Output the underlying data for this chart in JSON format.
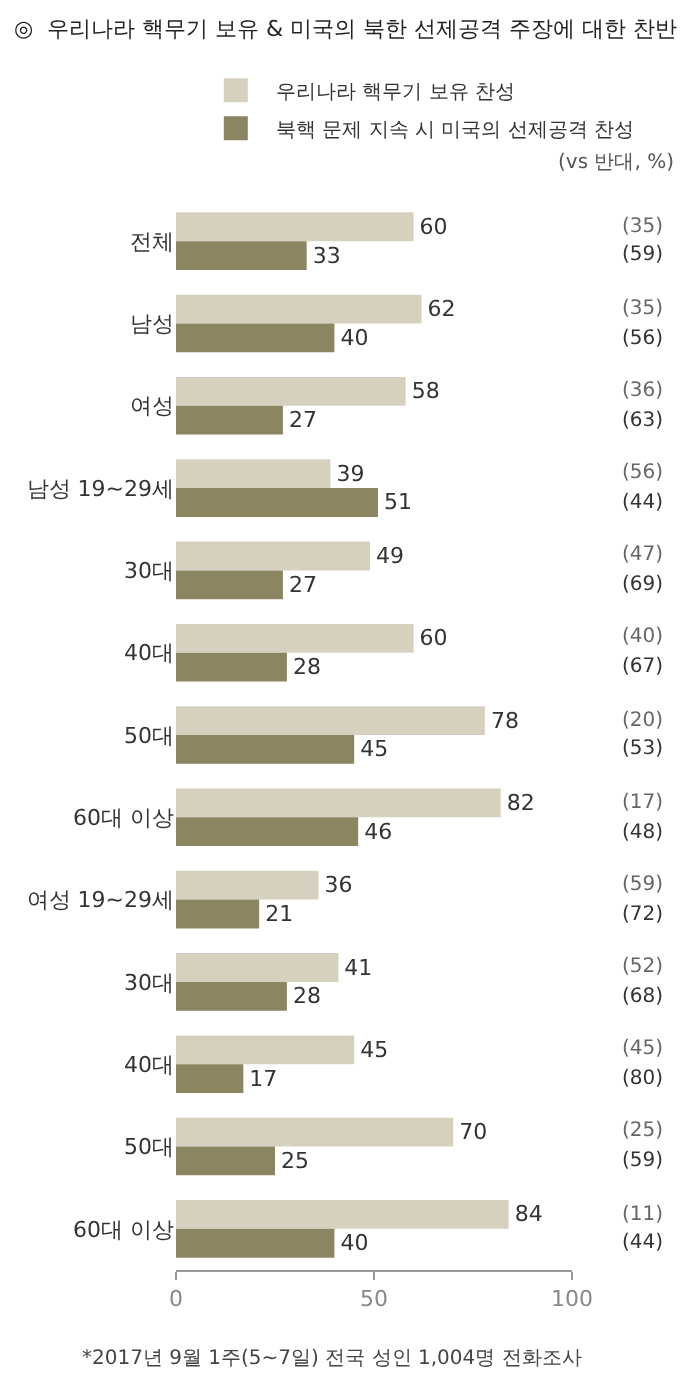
{
  "chart_data": {
    "type": "bar",
    "orientation": "horizontal",
    "title": "◎  우리나라 핵무기 보유 & 미국의 북한 선제공격 주장에 대한 찬반",
    "categories": [
      "전체",
      "남성",
      "여성",
      "남성 19~29세",
      "30대",
      "40대",
      "50대",
      "60대 이상",
      "여성 19~29세",
      "30대",
      "40대",
      "50대",
      "60대 이상"
    ],
    "series": [
      {
        "name": "우리나라 핵무기 보유 찬성",
        "color": "#d6d1bf",
        "values": [
          60,
          62,
          58,
          39,
          49,
          60,
          78,
          82,
          36,
          41,
          45,
          70,
          84
        ]
      },
      {
        "name": "북핵 문제 지속 시 미국의 선제공격 찬성",
        "color": "#8c8562",
        "values": [
          33,
          40,
          27,
          51,
          27,
          28,
          45,
          46,
          21,
          28,
          17,
          25,
          40
        ]
      }
    ],
    "xlim": [
      0,
      100
    ],
    "xticks": [
      0,
      50,
      100
    ],
    "data_labels": true,
    "legend": "top",
    "annotations": [
      "(vs 반대, %)",
      "(35)",
      "(59)",
      "(35)",
      "(56)",
      "(36)",
      "(63)",
      "(56)",
      "(44)",
      "(47)",
      "(69)",
      "(40)",
      "(67)",
      "(20)",
      "(53)",
      "(17)",
      "(48)",
      "(59)",
      "(72)",
      "(52)",
      "(68)",
      "(45)",
      "(80)",
      "(25)",
      "(59)",
      "(11)",
      "(44)",
      "*2017년 9월 1주(5~7일) 전국 성인 1,004명 전화조사"
    ]
  }
}
